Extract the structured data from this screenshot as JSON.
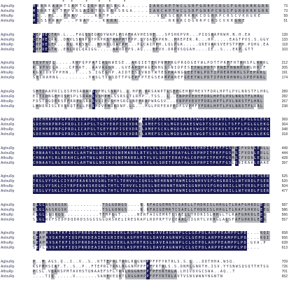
{
  "marks": "              *   *      *     *    *      *",
  "blocks": [
    {
      "rows": [
        {
          "name": "AgInuRp",
          "seq": "MRRNKAAWTSAMTGIRHRRKSRGA......IAKCAPTWCLSRFGRKPCRSCFGRQKRKGRR",
          "end": "73"
        },
        {
          "name": "AoInuRp",
          "seq": "MSRRTATTPPWRGAIRTRGRRKSRGA....IAKCAPTWCLSRFGRKPCRSCFGRQKRKGRR",
          "end": "73"
        },
        {
          "name": "AfInuRp",
          "seq": "MS..PL..PNAV....KRTP............VCRSCRRRKRKCDGRRPCRSCVKRGRE",
          "end": "59"
        },
        {
          "name": "AnInuRp",
          "seq": "MSSSPRAP...PNAY...KKRR.............RKRKCDGRRPCRSCVKRGRE",
          "end": "51"
        }
      ]
    },
    {
      "rows": [
        {
          "name": "AgInuRp",
          "seq": "CEPVECTRN.L...FAGSSEQRQYWAPLPSAFAAVHESNE...SPSHKPVH...PIQSAAPRWH.N.H.EA",
          "end": "139"
        },
        {
          "name": "AoInuRp",
          "seq": "CEFVECRR..DNVLSKNPSYPNPRSTAAPPTFPP.LYQAERPKN..PREPER.R...HH.....EAGTPVS.S.GGV",
          "end": "133"
        },
        {
          "name": "AfInuRp",
          "seq": "CHFVEGTK...NL.RKSSQ..RSNSLQAEPP...PLCAIHPH.LQLPGR.....QKEVARSVEPSTPPH.PQHG.EA",
          "end": "118"
        },
        {
          "name": "AnInuRp",
          "seq": "CHFVEGTR..ENLRQLQAIGG.....AAVDPPS.AQ...EPVV.DRPVSQGAH....IE..S...EKP.GTT",
          "end": "103"
        }
      ]
    },
    {
      "rows": [
        {
          "name": "AgInuRp",
          "seq": "KEVFVEL.....RHPQPPAFIAGNWESE..ARQIETERPNMPRGPRQDGEYWLPDTTPRFFHTHHSPLHRRL",
          "end": "212"
        },
        {
          "name": "AoInuRp",
          "seq": "K.VFVCLA...CPHAT..AAVAGGN..GVEAPIMAGENHGSDNIDPESEYWLPDTYPREFHNHHSPLHHIF",
          "end": "205"
        },
        {
          "name": "AfInuRp",
          "seq": "KGVIDVVPPHN..T...S.IGEGHP.AIDTESIVNDTWTESPAANGGEEYWLPDTIPRERHNHLSPEPRRL",
          "end": "191"
        },
        {
          "name": "AnInuRp",
          "seq": "SEIRAHNG.........YASLTVGSDTTPGEPFPTEGSEAMPANEFGEEYWLPDTIPRERHNHLSPEPRRL",
          "end": "174"
        }
      ]
    },
    {
      "rows": [
        {
          "name": "AgInuRp",
          "seq": "SHTIAAPRCLQSPHSARAVSVPMLSSRPL.L.HPP.RRSAWPTLSEEGEHPPMEVYFDRLHPTLPVLNRSTFLHRL",
          "end": "289"
        },
        {
          "name": "AoInuRp",
          "seq": "EITIDNGEHQSPSPLSRARSVSHPMLSSRSLTLRHP..TSS..L..ENPPVEVYFDRLHPTLPVLNRSTFLHRL",
          "end": "282"
        },
        {
          "name": "AfInuRp",
          "seq": "FDSTDGDERSEPRRPLSRRSVSIPVSHHSRGLNEPKRPWRGSV...ENPPVEVYFDRLHPTLPVLNRSTFLHRL",
          "end": "267"
        },
        {
          "name": "AnInuRp",
          "seq": "LHNDNISLEVSNQTPLLPRSMDVPMDRDNP.LG...MGLPRFEAPEDPSVPMFYFDRLHPTLPVLNRSTFLRRL",
          "end": "238"
        }
      ]
    },
    {
      "rows": [
        {
          "name": "AgInuRp",
          "seq": "SDEHHRPNPGPRDLICAPSLTGEYERPISEVDRVLAMEFSCKLMGDSAAESWGDTSSEAVLTSFFLPGLGLEKG",
          "end": "369"
        },
        {
          "name": "AoInuRp",
          "seq": "SDEHHRPNPGPRDLICAPSLTGEYERPISEVDRILAMEFSCKLMGDSAAESWGDTSSEAVLTSFFLPGLGLEKG",
          "end": "364"
        },
        {
          "name": "AfInuRp",
          "seq": "SDEHHRPNPGPRDLICAPSLTGEYERPISEVDRILAMEFSCKLMGDSAAESWGDTSSEAVLTSFFLPGLGLEKG",
          "end": "348"
        },
        {
          "name": "AnInuRp",
          "seq": "SDEHHRPNPGPRDLICAPSLTGEYERPISEVDRILAMEFSCKLMGDSAAESWGDTSSEAVLTSFFLPGLGLEKG",
          "end": "318"
        }
      ]
    },
    {
      "rows": [
        {
          "name": "AgInuRp",
          "seq": "CHNAAYLRLREAHCLAHTWGLNEIKVQNEMARRLRTVLVLSRETERAYALCRPHPITPKFFGSMSCFVDNLERLL",
          "end": "449"
        },
        {
          "name": "AoInuRp",
          "seq": "CHNAAYLRLREAHCLAHTWGLNEIKVQNEMARRLRTVLVLSRETERAYALCRPHPITPKFFGSMSCFVDNLERLL",
          "end": "444"
        },
        {
          "name": "AfInuRp",
          "seq": "CHNAAYLRLREAHCLAHTWGLNEIKVQNEMARRLRTVLVLSRETERAYALCRPHPITPKFFGSMSCFVDNLERLL",
          "end": "428"
        },
        {
          "name": "AnInuRp",
          "seq": "CHNAAYLRLREAHCLAHTWGLNEIKVQNEMARRLRTVLVLSRETERAYALCRPHPITPKFFGSLSNIRAALEAAE",
          "end": "397"
        }
      ]
    },
    {
      "rows": [
        {
          "name": "AgInuRp",
          "seq": "TRSLVYSKLCIYRPEKAKSKEGNLTHTLTEHVVLIQKSLNEHRNNTRWMIGGNHVVSFGHGRRILLNTVRDLFSER",
          "end": "525"
        },
        {
          "name": "AoInuRp",
          "seq": "TRSLVYSKLCIYRPEKAKSKEGNLTHTLTEHVVLIQKSLNEHRNNTRWMIGGNHVVSFGHGRRILLNTVRDLFSER",
          "end": "520"
        },
        {
          "name": "AfInuRp",
          "seq": "TRSLVYSKLCIYRPEKAKSKEGNLTHTLTEHVVLIQKSLNEHRNNTRWMIGGNHVVSFGHGRRILLNTVRDLFSER",
          "end": "504"
        },
        {
          "name": "AnInuRp",
          "seq": "TRSLVYSKLCIYRPEKAKSKEGNLTHTLTEHVVLIQKSLNEHRNNTRWMIGGNHVVSFGHGRRILLNTVRDLFSER",
          "end": "477"
        }
      ]
    },
    {
      "rows": [
        {
          "name": "AgInuRp",
          "seq": "RLGLAGSKGSK...........TSLGDNGS....N.RFAIGEMRTCSAELLTHDRISLHHGLTLRAFGHKDLEEG",
          "end": "587"
        },
        {
          "name": "AoInuRp",
          "seq": "RLGLAGSKGSK...........TSLGDNGS....N.RFAIGEMRTCSAELLTHDRISLHHGLTLRAFGHKDLEEG",
          "end": "586"
        },
        {
          "name": "AfInuRp",
          "seq": "KLGLSGQKGS...........TTMPGGT.....NERFAIGEMRTCSAELLTHDRISLHHGLTLRAFGHKDLEEG",
          "end": "566"
        },
        {
          "name": "AnInuRp",
          "seq": "SLGLRVFSEDPDQDRDSSGSSGGQRSRELIRESRAPLRDPRFTVCEAALQIGRTLVRHGLALSFAFGHKDLEEG",
          "end": "557"
        }
      ]
    },
    {
      "rows": [
        {
          "name": "AgInuRp",
          "seq": "GEAPAVSATKFIQSPRRDEAIRIGRIEKLASPHTRSLDAVEAGRWPLCLGEPDLARPPEAMPPLPD....RQI",
          "end": "658"
        },
        {
          "name": "AoInuRp",
          "seq": "GEAPAVSATKFIQSPRRDEAIRIGRIEKLASPHTRSLDAVEAGRWPLCLGEPDLARPPEAMPPLPD....RQI",
          "end": "656"
        },
        {
          "name": "AfInuRp",
          "seq": "GEAPAVSATKFIQSPRRDEAIRIGRIEKLASPHTRSLDAVEAGRWPLCLGEPDLARPPEAMPPLPD.GVA.P",
          "end": "628"
        },
        {
          "name": "AnInuRp",
          "seq": "SEPLAVSATKFIQSPRRDEAIRIGRIEKLASPHTRSLDAVEAGRWPLCLGEPDLARPPEAMPPLPD....",
          "end": "613"
        }
      ]
    },
    {
      "rows": [
        {
          "name": "AgInuRp",
          "seq": "P..M.AGS.Q..I..V..S..KTTEPRLTRNLRGGNHPPFPFYRTRLS.S.L...DDTHHA.WSQ.",
          "end": "709"
        },
        {
          "name": "AoInuRp",
          "seq": "KSPMHSIAT.T..S..P..FTEPRLTRNLRGGNHPPFPFYRTRLS.S.DNMLGNRTH.ISV.YYSNWSQSQTTHTSG",
          "end": "726"
        },
        {
          "name": "AfInuRp",
          "seq": "PCSL.VQANSPMTAVHSTQNAAEFSFLTRNLRGGNHPPFPFYRTRLA.LHIVDVGCSWA..AQ..T",
          "end": "701"
        },
        {
          "name": "AnInuRp",
          "seq": "....TIQ......V.......SANEVEQRTLRGGNHPPFPFYRTRLAVTVSNSWWNYNGNTN",
          "end": "652"
        }
      ]
    }
  ]
}
